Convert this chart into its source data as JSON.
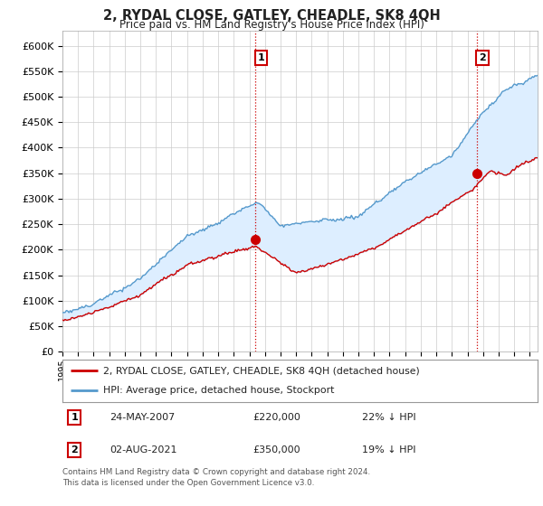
{
  "title": "2, RYDAL CLOSE, GATLEY, CHEADLE, SK8 4QH",
  "subtitle": "Price paid vs. HM Land Registry's House Price Index (HPI)",
  "yticks": [
    0,
    50000,
    100000,
    150000,
    200000,
    250000,
    300000,
    350000,
    400000,
    450000,
    500000,
    550000,
    600000
  ],
  "ylim": [
    0,
    630000
  ],
  "xlim_start": 1995.0,
  "xlim_end": 2025.5,
  "line1_label": "2, RYDAL CLOSE, GATLEY, CHEADLE, SK8 4QH (detached house)",
  "line1_color": "#cc0000",
  "line2_label": "HPI: Average price, detached house, Stockport",
  "line2_color": "#5599cc",
  "fill_color": "#ddeeff",
  "sale1_x": 2007.38,
  "sale1_y": 220000,
  "sale1_label": "1",
  "sale2_x": 2021.58,
  "sale2_y": 350000,
  "sale2_label": "2",
  "vline_color": "#cc0000",
  "vline_style": ":",
  "annotation1": [
    "1",
    "24-MAY-2007",
    "£220,000",
    "22% ↓ HPI"
  ],
  "annotation2": [
    "2",
    "02-AUG-2021",
    "£350,000",
    "19% ↓ HPI"
  ],
  "footnote": "Contains HM Land Registry data © Crown copyright and database right 2024.\nThis data is licensed under the Open Government Licence v3.0.",
  "background_color": "#ffffff",
  "grid_color": "#cccccc"
}
